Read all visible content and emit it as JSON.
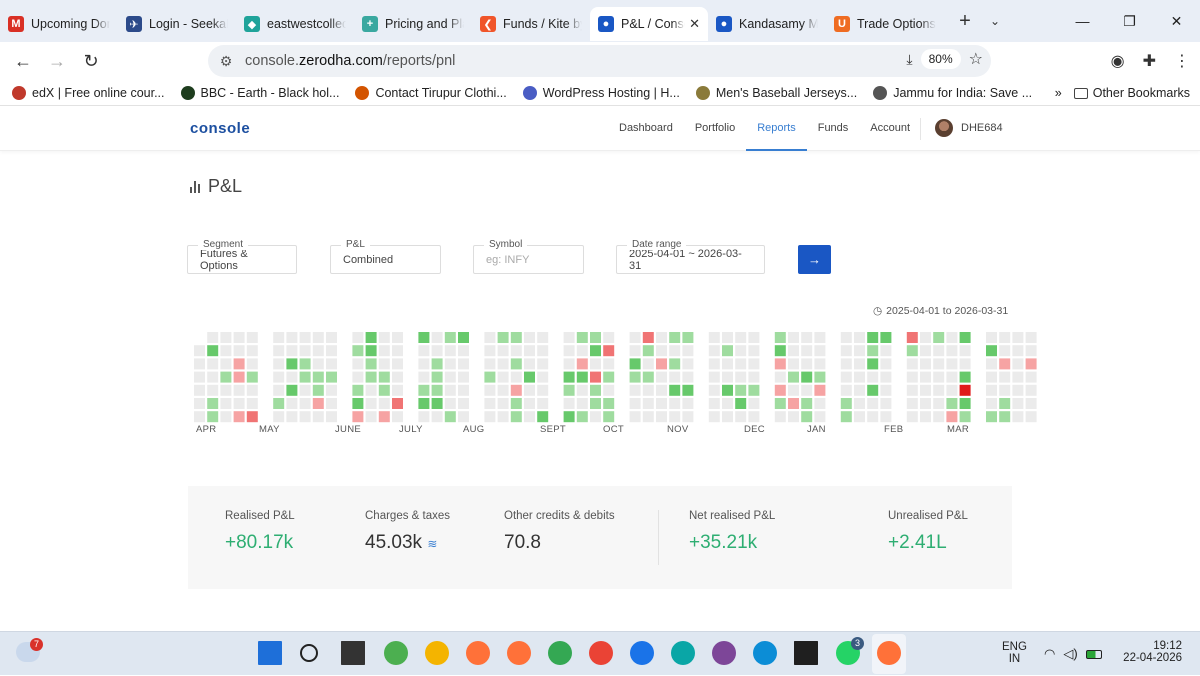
{
  "browser": {
    "tabs": [
      {
        "label": "Upcoming Dom",
        "icon": "gmail-icon",
        "color": "#d93025",
        "glyph": "M"
      },
      {
        "label": "Login - SeekaHo",
        "icon": "seekahost-icon",
        "color": "#2c4a8a",
        "glyph": "✈"
      },
      {
        "label": "eastwestcollectio",
        "icon": "diamond-icon",
        "color": "#1fa39a",
        "glyph": "◆"
      },
      {
        "label": "Pricing and Plan",
        "icon": "plus-icon",
        "color": "#3aa8a0",
        "glyph": "+"
      },
      {
        "label": "Funds / Kite by Z",
        "icon": "kite-icon",
        "color": "#f0552a",
        "glyph": "❮"
      },
      {
        "label": "P&L / Console",
        "icon": "console-icon",
        "color": "#1a57c4",
        "glyph": "●",
        "active": true
      },
      {
        "label": "Kandasamy Mob",
        "icon": "console-icon",
        "color": "#1a57c4",
        "glyph": "●"
      },
      {
        "label": "Trade Options u",
        "icon": "upstox-icon",
        "color": "#ef6c22",
        "glyph": "U"
      }
    ],
    "url_prefix": "console.",
    "url_domain": "zerodha.com",
    "url_path": "/reports/pnl",
    "zoom": "80%",
    "bookmarks": [
      {
        "label": "edX | Free online cour...",
        "color": "#c0392b"
      },
      {
        "label": "BBC - Earth - Black hol...",
        "color": "#1e3d1e"
      },
      {
        "label": "Contact Tirupur Clothi...",
        "color": "#d35400"
      },
      {
        "label": "WordPress Hosting | H...",
        "color": "#4a5dc4"
      },
      {
        "label": "Men's Baseball Jerseys...",
        "color": "#8a7a3a"
      },
      {
        "label": "Jammu for India: Save ...",
        "color": "#555555"
      }
    ],
    "other_bookmarks": "Other Bookmarks"
  },
  "console": {
    "logo": "console",
    "nav": [
      "Dashboard",
      "Portfolio",
      "Reports",
      "Funds",
      "Account"
    ],
    "active_nav": "Reports",
    "user_id": "DHE684",
    "page_title": "P&L",
    "filters": {
      "segment_label": "Segment",
      "segment_value": "Futures & Options",
      "pnl_label": "P&L",
      "pnl_value": "Combined",
      "symbol_label": "Symbol",
      "symbol_placeholder": "eg: INFY",
      "date_label": "Date range",
      "date_value": "2025-04-01 ~ 2026-03-31"
    },
    "heatmap_range": "2025-04-01 to 2026-03-31",
    "months": [
      "APR",
      "MAY",
      "JUNE",
      "JULY",
      "AUG",
      "SEPT",
      "OCT",
      "NOV",
      "DEC",
      "JAN",
      "FEB",
      "MAR"
    ],
    "summary": {
      "realised_label": "Realised P&L",
      "realised_value": "+80.17k",
      "charges_label": "Charges & taxes",
      "charges_value": "45.03k",
      "other_label": "Other credits & debits",
      "other_value": "70.8",
      "net_label": "Net realised P&L",
      "net_value": "+35.21k",
      "unrealised_label": "Unrealised P&L",
      "unrealised_value": "+2.41L"
    },
    "colors": {
      "profit_light": "#9fdc9f",
      "profit": "#67c96b",
      "profit_dark": "#2aa537",
      "loss_light": "#f6a3a3",
      "loss": "#f07474",
      "loss_dark": "#e01b1b",
      "empty": "#ebebeb",
      "accent": "#387ed1"
    }
  },
  "taskbar": {
    "weather_badge": "7",
    "whatsapp_badge": "3",
    "lang_1": "ENG",
    "lang_2": "IN",
    "time": "19:12",
    "date": "22-04-2026"
  }
}
